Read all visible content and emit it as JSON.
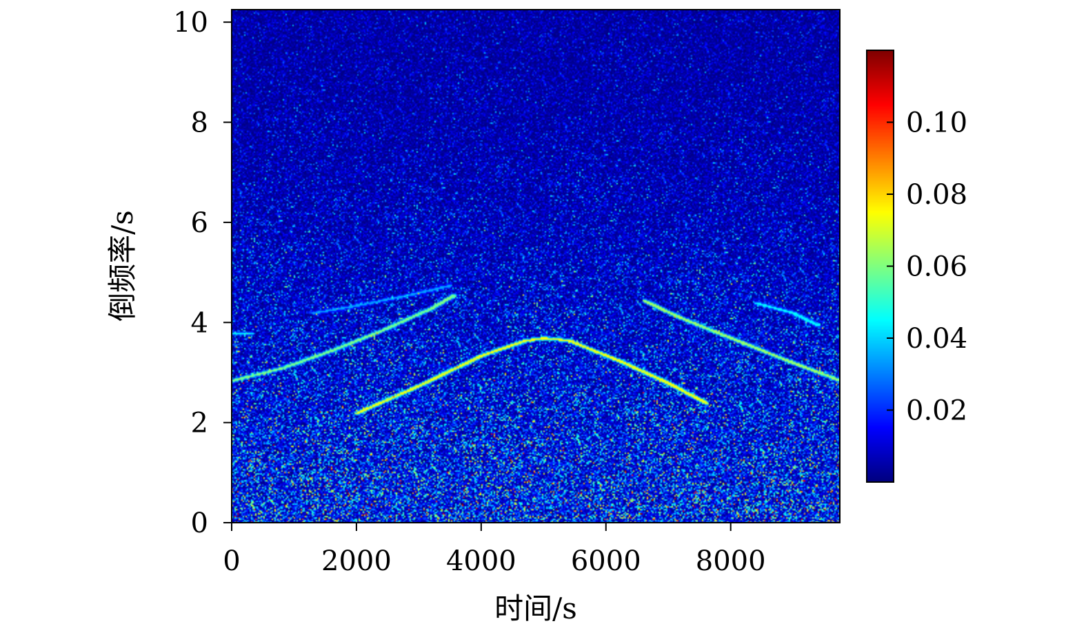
{
  "chart_data": {
    "type": "heatmap",
    "title": "",
    "xlabel": "时间/s",
    "ylabel": "倒频率/s",
    "xlim": [
      0,
      9750
    ],
    "ylim": [
      0,
      10.25
    ],
    "x_ticks": [
      0,
      2000,
      4000,
      6000,
      8000
    ],
    "x_tick_labels": [
      "0",
      "2000",
      "4000",
      "6000",
      "8000"
    ],
    "y_ticks": [
      0,
      2,
      4,
      6,
      8,
      10
    ],
    "y_tick_labels": [
      "0",
      "2",
      "4",
      "6",
      "8",
      "10"
    ],
    "colormap": "jet",
    "colorbar": {
      "range": [
        0,
        0.12
      ],
      "ticks": [
        0.02,
        0.04,
        0.06,
        0.08,
        0.1
      ],
      "tick_labels": [
        "0.02",
        "0.04",
        "0.06",
        "0.08",
        "0.10"
      ]
    },
    "background_intensity": 0.02,
    "grid": false,
    "ridges": [
      {
        "points": [
          [
            2000,
            2.2
          ],
          [
            3000,
            2.75
          ],
          [
            4000,
            3.35
          ],
          [
            4700,
            3.65
          ],
          [
            5000,
            3.7
          ],
          [
            5400,
            3.65
          ],
          [
            6200,
            3.25
          ],
          [
            7000,
            2.8
          ],
          [
            7600,
            2.4
          ]
        ],
        "intensity": 0.075
      },
      {
        "points": [
          [
            0,
            2.85
          ],
          [
            800,
            3.1
          ],
          [
            1600,
            3.45
          ],
          [
            2400,
            3.85
          ],
          [
            3200,
            4.3
          ],
          [
            3550,
            4.55
          ]
        ],
        "intensity": 0.06
      },
      {
        "points": [
          [
            6600,
            4.45
          ],
          [
            7200,
            4.1
          ],
          [
            8000,
            3.7
          ],
          [
            8800,
            3.3
          ],
          [
            9750,
            2.85
          ]
        ],
        "intensity": 0.065
      },
      {
        "points": [
          [
            1300,
            4.2
          ],
          [
            2000,
            4.35
          ],
          [
            2800,
            4.55
          ],
          [
            3500,
            4.75
          ]
        ],
        "intensity": 0.035
      },
      {
        "points": [
          [
            8400,
            4.4
          ],
          [
            9000,
            4.2
          ],
          [
            9400,
            3.95
          ]
        ],
        "intensity": 0.045
      },
      {
        "points": [
          [
            0,
            3.8
          ],
          [
            300,
            3.8
          ]
        ],
        "intensity": 0.045
      }
    ]
  }
}
